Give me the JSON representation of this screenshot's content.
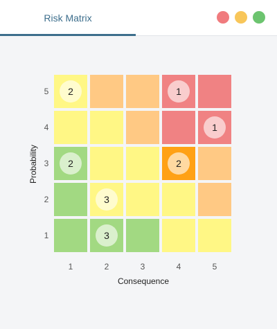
{
  "window": {
    "tab_label": "Risk Matrix",
    "buttons": [
      {
        "name": "close-button",
        "color": "#f07b7e"
      },
      {
        "name": "minimize-button",
        "color": "#f8c65a"
      },
      {
        "name": "maximize-button",
        "color": "#6cc46f"
      }
    ]
  },
  "chart_data": {
    "type": "heatmap",
    "title": "",
    "xlabel": "Consequence",
    "ylabel": "Probability",
    "x_ticks": [
      "1",
      "2",
      "3",
      "4",
      "5"
    ],
    "y_ticks": [
      "1",
      "2",
      "3",
      "4",
      "5"
    ],
    "grid": false,
    "legend": "none",
    "cells": [
      {
        "probability": 5,
        "consequence": 1,
        "color": "#fff785",
        "count": 2
      },
      {
        "probability": 5,
        "consequence": 2,
        "color": "#ffc984",
        "count": null
      },
      {
        "probability": 5,
        "consequence": 3,
        "color": "#ffc984",
        "count": null
      },
      {
        "probability": 5,
        "consequence": 4,
        "color": "#f08283",
        "count": 1
      },
      {
        "probability": 5,
        "consequence": 5,
        "color": "#f08283",
        "count": null
      },
      {
        "probability": 4,
        "consequence": 1,
        "color": "#fff785",
        "count": null
      },
      {
        "probability": 4,
        "consequence": 2,
        "color": "#fff785",
        "count": null
      },
      {
        "probability": 4,
        "consequence": 3,
        "color": "#ffc984",
        "count": null
      },
      {
        "probability": 4,
        "consequence": 4,
        "color": "#f08283",
        "count": null
      },
      {
        "probability": 4,
        "consequence": 5,
        "color": "#f08283",
        "count": 1
      },
      {
        "probability": 3,
        "consequence": 1,
        "color": "#a2d982",
        "count": 2
      },
      {
        "probability": 3,
        "consequence": 2,
        "color": "#fff785",
        "count": null
      },
      {
        "probability": 3,
        "consequence": 3,
        "color": "#fff785",
        "count": null
      },
      {
        "probability": 3,
        "consequence": 4,
        "color": "#ffa115",
        "count": 2
      },
      {
        "probability": 3,
        "consequence": 5,
        "color": "#ffc984",
        "count": null
      },
      {
        "probability": 2,
        "consequence": 1,
        "color": "#a2d982",
        "count": null
      },
      {
        "probability": 2,
        "consequence": 2,
        "color": "#fff785",
        "count": 3
      },
      {
        "probability": 2,
        "consequence": 3,
        "color": "#fff785",
        "count": null
      },
      {
        "probability": 2,
        "consequence": 4,
        "color": "#fff785",
        "count": null
      },
      {
        "probability": 2,
        "consequence": 5,
        "color": "#ffc984",
        "count": null
      },
      {
        "probability": 1,
        "consequence": 1,
        "color": "#a2d982",
        "count": null
      },
      {
        "probability": 1,
        "consequence": 2,
        "color": "#a2d982",
        "count": 3
      },
      {
        "probability": 1,
        "consequence": 3,
        "color": "#a2d982",
        "count": null
      },
      {
        "probability": 1,
        "consequence": 4,
        "color": "#fff785",
        "count": null
      },
      {
        "probability": 1,
        "consequence": 5,
        "color": "#fff785",
        "count": null
      }
    ]
  }
}
